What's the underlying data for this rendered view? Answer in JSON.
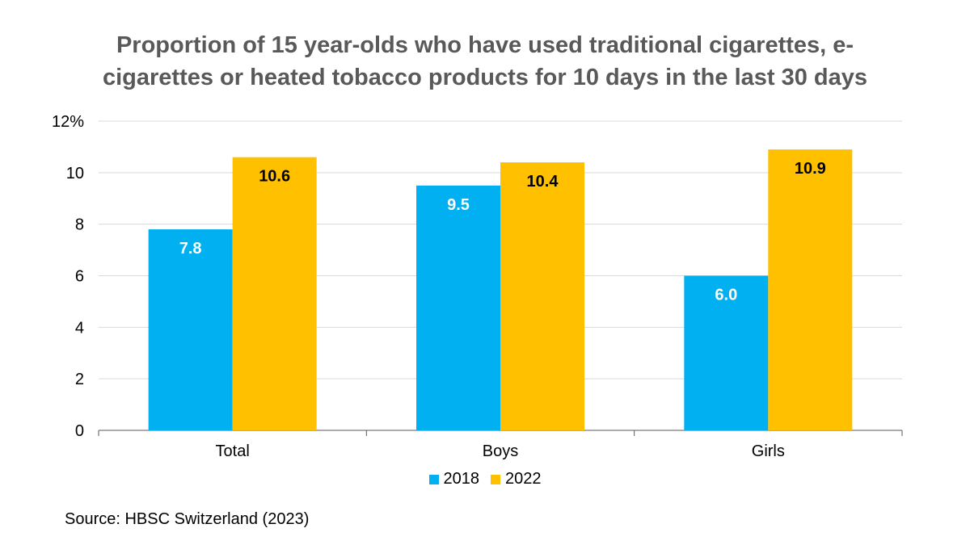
{
  "title_lines": [
    "Proportion of 15 year-olds who have used traditional cigarettes, e-",
    "cigarettes or heated tobacco products for 10 days in the last 30 days"
  ],
  "source": "Source: HBSC Switzerland (2023)",
  "colors": {
    "series_2018": "#00B0F0",
    "series_2022": "#FFC000",
    "grid": "#D9D9D9",
    "axis": "#595959"
  },
  "chart_data": {
    "type": "bar",
    "title": "Proportion of 15 year-olds who have used traditional cigarettes, e-cigarettes or heated tobacco products for 10 days in the last 30 days",
    "categories": [
      "Total",
      "Boys",
      "Girls"
    ],
    "series": [
      {
        "name": "2018",
        "values": [
          7.8,
          9.5,
          6.0
        ],
        "labels": [
          "7.8",
          "9.5",
          "6.0"
        ],
        "label_color": "#FFFFFF"
      },
      {
        "name": "2022",
        "values": [
          10.6,
          10.4,
          10.9
        ],
        "labels": [
          "10.6",
          "10.4",
          "10.9"
        ],
        "label_color": "#000000"
      }
    ],
    "ylim": [
      0,
      12
    ],
    "yticks": [
      0,
      2,
      4,
      6,
      8,
      10,
      12
    ],
    "ytick_labels": [
      "0",
      "2",
      "4",
      "6",
      "8",
      "10",
      "12%"
    ],
    "grid": true,
    "legend_position": "bottom",
    "xlabel": "",
    "ylabel": ""
  }
}
